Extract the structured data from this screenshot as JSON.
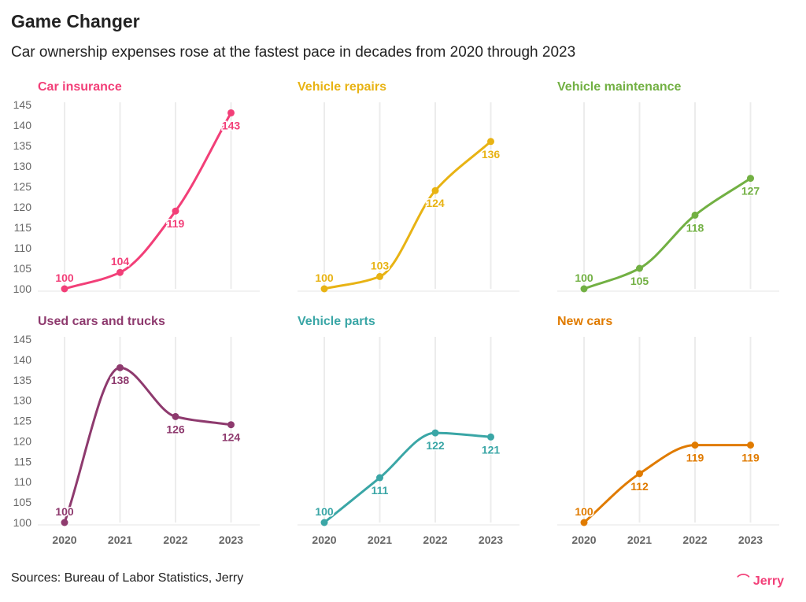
{
  "title": "Game Changer",
  "subtitle": "Car ownership expenses rose at the fastest pace in decades from 2020 through 2023",
  "source": "Sources: Bureau of Labor Statistics, Jerry",
  "logo": "Jerry",
  "chart_data": [
    {
      "type": "line",
      "title": "Car insurance",
      "color": "#f23f78",
      "x": [
        "2020",
        "2021",
        "2022",
        "2023"
      ],
      "values": [
        100,
        104,
        119,
        143
      ],
      "ylim": [
        100,
        145
      ],
      "yticks": [
        100,
        105,
        110,
        115,
        120,
        125,
        130,
        135,
        140,
        145
      ],
      "grid": "vertical"
    },
    {
      "type": "line",
      "title": "Vehicle repairs",
      "color": "#e8b314",
      "x": [
        "2020",
        "2021",
        "2022",
        "2023"
      ],
      "values": [
        100,
        103,
        124,
        136
      ],
      "ylim": [
        100,
        145
      ],
      "grid": "vertical"
    },
    {
      "type": "line",
      "title": "Vehicle maintenance",
      "color": "#72b043",
      "x": [
        "2020",
        "2021",
        "2022",
        "2023"
      ],
      "values": [
        100,
        105,
        118,
        127
      ],
      "ylim": [
        100,
        145
      ],
      "grid": "vertical"
    },
    {
      "type": "line",
      "title": "Used cars and trucks",
      "color": "#8e3a6e",
      "x": [
        "2020",
        "2021",
        "2022",
        "2023"
      ],
      "values": [
        100,
        138,
        126,
        124
      ],
      "ylim": [
        100,
        145
      ],
      "yticks": [
        100,
        105,
        110,
        115,
        120,
        125,
        130,
        135,
        140,
        145
      ],
      "grid": "vertical"
    },
    {
      "type": "line",
      "title": "Vehicle parts",
      "color": "#3aa6a6",
      "x": [
        "2020",
        "2021",
        "2022",
        "2023"
      ],
      "values": [
        100,
        111,
        122,
        121
      ],
      "ylim": [
        100,
        145
      ],
      "grid": "vertical"
    },
    {
      "type": "line",
      "title": "New cars",
      "color": "#e07b00",
      "x": [
        "2020",
        "2021",
        "2022",
        "2023"
      ],
      "values": [
        100,
        112,
        119,
        119
      ],
      "ylim": [
        100,
        145
      ],
      "grid": "vertical"
    }
  ]
}
